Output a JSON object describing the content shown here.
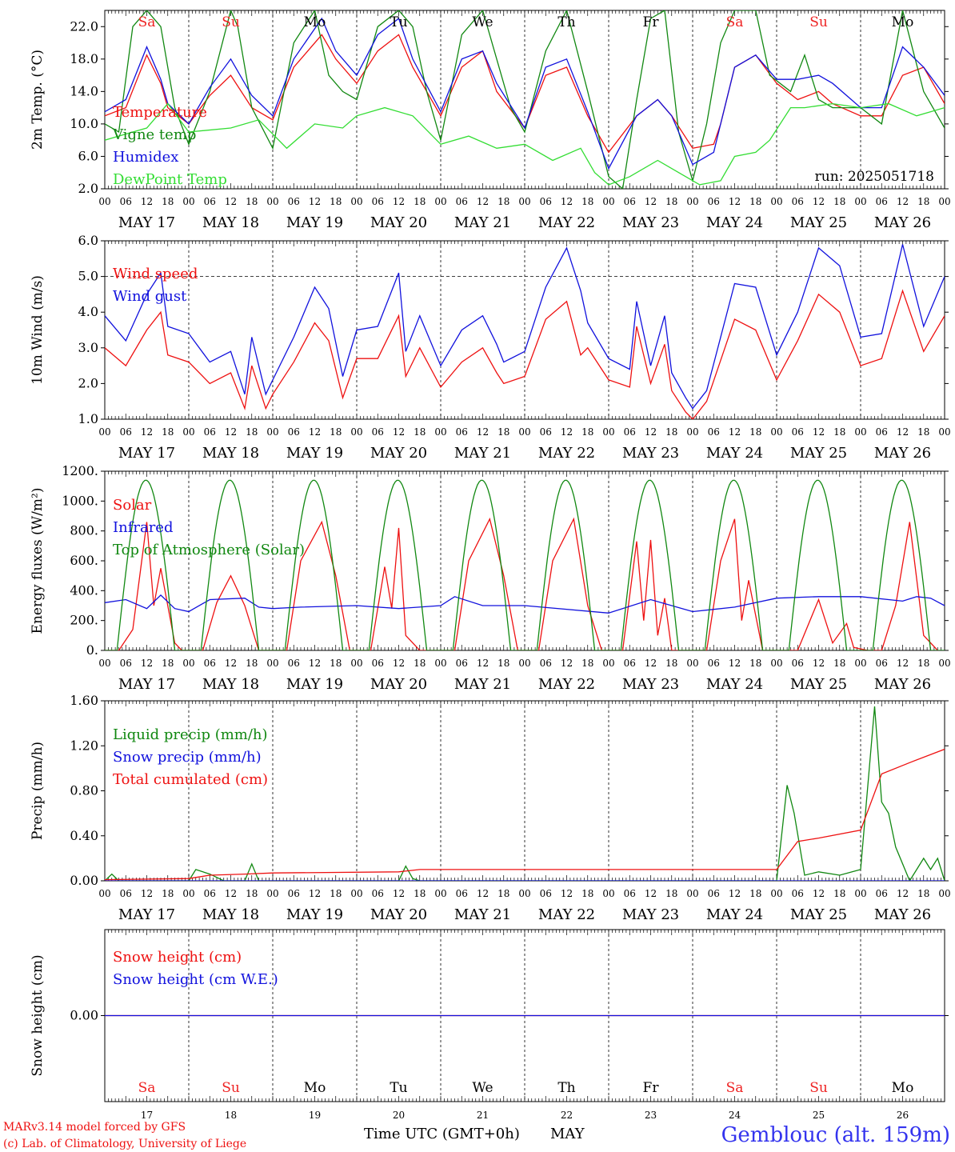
{
  "run_label": "run: 2025051718",
  "footer": {
    "model_line": "MARv3.14 model forced by GFS",
    "lab_line": "(c) Lab. of Climatology, University of Liege",
    "xlabel": "Time UTC (GMT+0h)",
    "month": "MAY",
    "station": "Gemblouc (alt. 159m)"
  },
  "days": {
    "dates": [
      "MAY 17",
      "MAY 18",
      "MAY 19",
      "MAY 20",
      "MAY 21",
      "MAY 22",
      "MAY 23",
      "MAY 24",
      "MAY 25",
      "MAY 26"
    ],
    "day_numbers": [
      "17",
      "18",
      "19",
      "20",
      "21",
      "22",
      "23",
      "24",
      "25",
      "26"
    ],
    "weekdays": [
      "Sa",
      "Su",
      "Mo",
      "Tu",
      "We",
      "Th",
      "Fr",
      "Sa",
      "Su",
      "Mo"
    ],
    "hour_ticks": [
      "00",
      "06",
      "12",
      "18"
    ],
    "end_tick": "00",
    "weekend_color": "#ee2222",
    "weekday_color": "#000000"
  },
  "colors": {
    "red": "#ee1111",
    "green": "#118811",
    "blue": "#1111dd",
    "lightgreen": "#33dd33",
    "station_blue": "#3333ee"
  },
  "chart_data": [
    {
      "type": "line",
      "ylabel": "2m Temp. (°C)",
      "ylim": [
        2.0,
        24.0
      ],
      "yticks": [
        "2.0",
        "6.0",
        "10.0",
        "14.0",
        "18.0",
        "22.0"
      ],
      "x_unit": "hours since MAY 17 00 UTC",
      "series": [
        {
          "name": "Temperature",
          "color": "#ee1111",
          "x": [
            0,
            6,
            12,
            16,
            18,
            24,
            30,
            36,
            42,
            48,
            54,
            62,
            66,
            72,
            78,
            84,
            88,
            96,
            102,
            108,
            112,
            120,
            126,
            132,
            138,
            144,
            152,
            158,
            162,
            168,
            174,
            176,
            180,
            186,
            192,
            198,
            204,
            208,
            216,
            222,
            228,
            234,
            240
          ],
          "y": [
            11,
            12,
            18.5,
            15,
            12,
            10,
            13.5,
            16,
            12,
            10.5,
            17,
            21,
            18,
            15,
            19,
            21,
            17,
            11,
            17,
            19,
            14,
            9.5,
            16,
            17,
            11,
            6.5,
            11,
            13,
            11,
            7,
            7.5,
            10,
            17,
            18.5,
            15,
            13,
            14,
            12.5,
            11,
            11,
            16,
            17,
            12.5
          ]
        },
        {
          "name": "Vigne temp",
          "color": "#118811",
          "x": [
            0,
            4,
            8,
            12,
            16,
            20,
            24,
            30,
            36,
            38,
            42,
            48,
            54,
            60,
            64,
            68,
            72,
            78,
            84,
            88,
            92,
            96,
            102,
            108,
            112,
            116,
            120,
            126,
            132,
            138,
            144,
            148,
            152,
            156,
            160,
            164,
            168,
            172,
            176,
            180,
            186,
            190,
            196,
            200,
            204,
            208,
            216,
            222,
            228,
            234,
            240
          ],
          "y": [
            10,
            9,
            22,
            24,
            22,
            12,
            7.5,
            14,
            24,
            22,
            12,
            7,
            20,
            24,
            16,
            14,
            13,
            22,
            24,
            22,
            14,
            8,
            21,
            24,
            18,
            12,
            9,
            19,
            24,
            14,
            3.5,
            2,
            13,
            23,
            24,
            9,
            3,
            10,
            20,
            24,
            24,
            16,
            14,
            18.5,
            13,
            12,
            12,
            10,
            24,
            14,
            9.5
          ]
        },
        {
          "name": "Humidex",
          "color": "#1111dd",
          "x": [
            0,
            6,
            12,
            16,
            18,
            24,
            30,
            36,
            42,
            48,
            54,
            62,
            66,
            72,
            78,
            84,
            88,
            96,
            102,
            108,
            112,
            120,
            126,
            132,
            138,
            144,
            152,
            158,
            162,
            168,
            174,
            176,
            180,
            186,
            192,
            198,
            204,
            208,
            216,
            222,
            228,
            234,
            240
          ],
          "y": [
            11.5,
            13,
            19.5,
            15.5,
            12.5,
            10,
            14.5,
            18,
            13.5,
            11,
            18,
            23,
            19,
            16,
            21,
            23,
            18,
            11.5,
            18,
            19,
            15,
            9.5,
            17,
            18,
            11.5,
            4.5,
            11,
            13,
            11,
            5,
            6.5,
            10,
            17,
            18.5,
            15.5,
            15.5,
            16,
            15,
            12,
            12,
            19.5,
            17,
            13.5
          ]
        },
        {
          "name": "DewPoint Temp",
          "color": "#33dd33",
          "x": [
            0,
            8,
            12,
            18,
            24,
            36,
            44,
            52,
            60,
            68,
            72,
            80,
            88,
            96,
            104,
            112,
            120,
            128,
            136,
            140,
            144,
            150,
            158,
            164,
            170,
            176,
            180,
            186,
            190,
            196,
            200,
            208,
            216,
            224,
            232,
            240
          ],
          "y": [
            8,
            9,
            9.5,
            12.5,
            9,
            9.5,
            10.5,
            7,
            10,
            9.5,
            11,
            12,
            11,
            7.5,
            8.5,
            7,
            7.5,
            5.5,
            7,
            4,
            2.5,
            3.5,
            5.5,
            4,
            2.5,
            3,
            6,
            6.5,
            8,
            12,
            12,
            12.5,
            12,
            12.5,
            11,
            12
          ]
        }
      ]
    },
    {
      "type": "line",
      "ylabel": "10m Wind (m/s)",
      "ylim": [
        1.0,
        6.0
      ],
      "yticks": [
        "1.0",
        "2.0",
        "3.0",
        "4.0",
        "5.0",
        "6.0"
      ],
      "reference_line": 5.0,
      "x_unit": "hours since MAY 17 00 UTC",
      "series": [
        {
          "name": "Wind speed",
          "color": "#ee1111",
          "x": [
            0,
            6,
            12,
            16,
            18,
            24,
            30,
            36,
            40,
            42,
            46,
            48,
            54,
            60,
            64,
            68,
            72,
            78,
            84,
            86,
            90,
            96,
            102,
            108,
            112,
            114,
            120,
            126,
            132,
            136,
            138,
            144,
            150,
            152,
            156,
            160,
            162,
            166,
            168,
            172,
            180,
            186,
            192,
            198,
            204,
            210,
            216,
            222,
            228,
            234,
            240
          ],
          "y": [
            3,
            2.5,
            3.5,
            4,
            2.8,
            2.6,
            2,
            2.3,
            1.3,
            2.5,
            1.3,
            1.7,
            2.6,
            3.7,
            3.2,
            1.6,
            2.7,
            2.7,
            3.9,
            2.2,
            3.0,
            1.9,
            2.6,
            3.0,
            2.3,
            2.0,
            2.2,
            3.8,
            4.3,
            2.8,
            3.0,
            2.1,
            1.9,
            3.6,
            2.0,
            3.1,
            1.8,
            1.2,
            1.0,
            1.5,
            3.8,
            3.5,
            2.1,
            3.2,
            4.5,
            4.0,
            2.5,
            2.7,
            4.6,
            2.9,
            3.9
          ]
        },
        {
          "name": "Wind gust",
          "color": "#1111dd",
          "x": [
            0,
            6,
            12,
            16,
            18,
            24,
            30,
            36,
            40,
            42,
            46,
            48,
            54,
            60,
            64,
            68,
            72,
            78,
            84,
            86,
            90,
            96,
            102,
            108,
            112,
            114,
            120,
            126,
            132,
            136,
            138,
            144,
            150,
            152,
            156,
            160,
            162,
            166,
            168,
            172,
            180,
            186,
            192,
            198,
            204,
            210,
            216,
            222,
            228,
            234,
            240
          ],
          "y": [
            3.9,
            3.2,
            4.5,
            5.1,
            3.6,
            3.4,
            2.6,
            2.9,
            1.7,
            3.3,
            1.7,
            2.1,
            3.3,
            4.7,
            4.1,
            2.2,
            3.5,
            3.6,
            5.1,
            2.9,
            3.9,
            2.5,
            3.5,
            3.9,
            3.1,
            2.6,
            2.9,
            4.7,
            5.8,
            4.6,
            3.7,
            2.7,
            2.4,
            4.3,
            2.5,
            3.9,
            2.3,
            1.6,
            1.3,
            1.8,
            4.8,
            4.7,
            2.8,
            4.0,
            5.8,
            5.3,
            3.3,
            3.4,
            5.9,
            3.6,
            5.0
          ]
        }
      ]
    },
    {
      "type": "line",
      "ylabel": "Energy fluxes (W/m²)",
      "ylim": [
        0,
        1200
      ],
      "yticks": [
        "0.",
        "200.",
        "400.",
        "600.",
        "800.",
        "1000.",
        "1200."
      ],
      "x_unit": "hours since MAY 17 00 UTC",
      "series": [
        {
          "name": "Solar",
          "color": "#ee1111",
          "x": [
            0,
            4,
            8,
            12,
            14,
            16,
            20,
            22,
            28,
            32,
            36,
            40,
            44,
            46,
            52,
            56,
            62,
            66,
            70,
            76,
            80,
            82,
            84,
            86,
            90,
            100,
            104,
            110,
            114,
            118,
            124,
            128,
            134,
            138,
            142,
            148,
            152,
            154,
            156,
            158,
            160,
            162,
            166,
            172,
            176,
            180,
            182,
            184,
            188,
            194,
            198,
            204,
            208,
            212,
            214,
            218,
            222,
            226,
            230,
            234,
            238
          ],
          "y": [
            0,
            0,
            140,
            860,
            300,
            550,
            50,
            0,
            0,
            320,
            500,
            300,
            0,
            0,
            0,
            600,
            860,
            500,
            0,
            0,
            560,
            280,
            820,
            100,
            0,
            0,
            600,
            880,
            500,
            0,
            0,
            600,
            880,
            300,
            0,
            0,
            730,
            200,
            740,
            100,
            350,
            0,
            0,
            0,
            600,
            880,
            200,
            470,
            0,
            0,
            0,
            340,
            50,
            180,
            20,
            0,
            0,
            300,
            860,
            100,
            0
          ]
        },
        {
          "name": "Infrared",
          "color": "#1111dd",
          "x": [
            0,
            6,
            12,
            16,
            20,
            24,
            30,
            40,
            44,
            48,
            56,
            72,
            84,
            96,
            100,
            108,
            120,
            144,
            156,
            168,
            180,
            192,
            204,
            216,
            228,
            232,
            236,
            240
          ],
          "y": [
            320,
            340,
            280,
            370,
            280,
            260,
            340,
            350,
            290,
            280,
            290,
            300,
            280,
            300,
            360,
            300,
            300,
            250,
            340,
            260,
            290,
            350,
            360,
            360,
            330,
            360,
            350,
            300
          ]
        },
        {
          "name": "Top of Atmosphere (Solar)",
          "color": "#118811",
          "daily_peak": 1140,
          "sunrise_h": 3.5,
          "sunset_h": 20.0
        }
      ]
    },
    {
      "type": "line",
      "ylabel": "Precip (mm/h)",
      "ylim": [
        0.0,
        1.6
      ],
      "yticks": [
        "0.00",
        "0.40",
        "0.80",
        "1.20",
        "1.60"
      ],
      "x_unit": "hours since MAY 17 00 UTC",
      "series": [
        {
          "name": "Liquid precip (mm/h)",
          "color": "#118811",
          "x": [
            0,
            2,
            4,
            8,
            24,
            26,
            30,
            34,
            40,
            42,
            44,
            48,
            84,
            86,
            88,
            90,
            192,
            195,
            197,
            200,
            204,
            210,
            216,
            220,
            222,
            224,
            226,
            230,
            234,
            236,
            238,
            240
          ],
          "y": [
            0,
            0.06,
            0,
            0,
            0,
            0.1,
            0.06,
            0,
            0,
            0.15,
            0,
            0,
            0,
            0.13,
            0.02,
            0,
            0,
            0.85,
            0.6,
            0.05,
            0.08,
            0.05,
            0.1,
            1.55,
            0.7,
            0.6,
            0.3,
            0,
            0.2,
            0.1,
            0.2,
            0
          ]
        },
        {
          "name": "Snow precip (mm/h)",
          "color": "#1111dd",
          "x": [
            0,
            240
          ],
          "y": [
            0,
            0
          ]
        },
        {
          "name": "Total cumulated (cm)",
          "color": "#ee1111",
          "x": [
            0,
            24,
            30,
            40,
            48,
            84,
            90,
            192,
            198,
            204,
            216,
            222,
            230,
            240
          ],
          "y": [
            0.01,
            0.02,
            0.05,
            0.06,
            0.07,
            0.08,
            0.1,
            0.1,
            0.35,
            0.38,
            0.45,
            0.95,
            1.05,
            1.17
          ]
        }
      ]
    },
    {
      "type": "line",
      "ylabel": "Snow height (cm)",
      "ylim": [
        -1,
        1
      ],
      "yticks": [
        "0.00"
      ],
      "x_unit": "hours since MAY 17 00 UTC",
      "series": [
        {
          "name": "Snow height (cm)",
          "color": "#ee1111",
          "x": [
            0,
            240
          ],
          "y": [
            0,
            0
          ]
        },
        {
          "name": "Snow height (cm W.E.)",
          "color": "#1111dd",
          "x": [
            0,
            240
          ],
          "y": [
            0,
            0
          ]
        }
      ]
    }
  ]
}
